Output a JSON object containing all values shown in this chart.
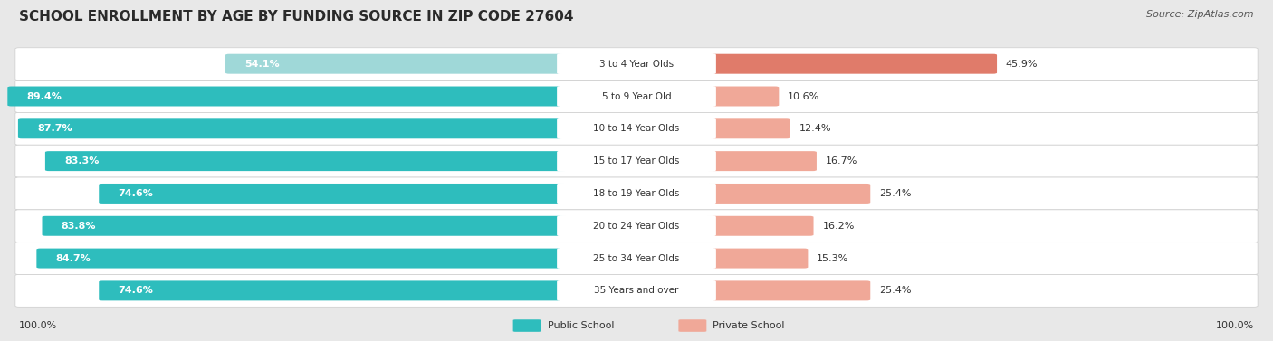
{
  "title": "SCHOOL ENROLLMENT BY AGE BY FUNDING SOURCE IN ZIP CODE 27604",
  "source": "Source: ZipAtlas.com",
  "categories": [
    "3 to 4 Year Olds",
    "5 to 9 Year Old",
    "10 to 14 Year Olds",
    "15 to 17 Year Olds",
    "18 to 19 Year Olds",
    "20 to 24 Year Olds",
    "25 to 34 Year Olds",
    "35 Years and over"
  ],
  "public_values": [
    54.1,
    89.4,
    87.7,
    83.3,
    74.6,
    83.8,
    84.7,
    74.6
  ],
  "private_values": [
    45.9,
    10.6,
    12.4,
    16.7,
    25.4,
    16.2,
    15.3,
    25.4
  ],
  "public_color_row0": "#9fd8d8",
  "public_color_rest": "#2ebdbd",
  "private_color_row0": "#e07b6a",
  "private_color_rest": "#f0a898",
  "bg_color": "#e8e8e8",
  "row_bg_color": "#ffffff",
  "legend_public": "Public School",
  "legend_private": "Private School",
  "bottom_left_label": "100.0%",
  "bottom_right_label": "100.0%",
  "title_fontsize": 11,
  "source_fontsize": 8,
  "label_fontsize": 8,
  "cat_fontsize": 7.5
}
